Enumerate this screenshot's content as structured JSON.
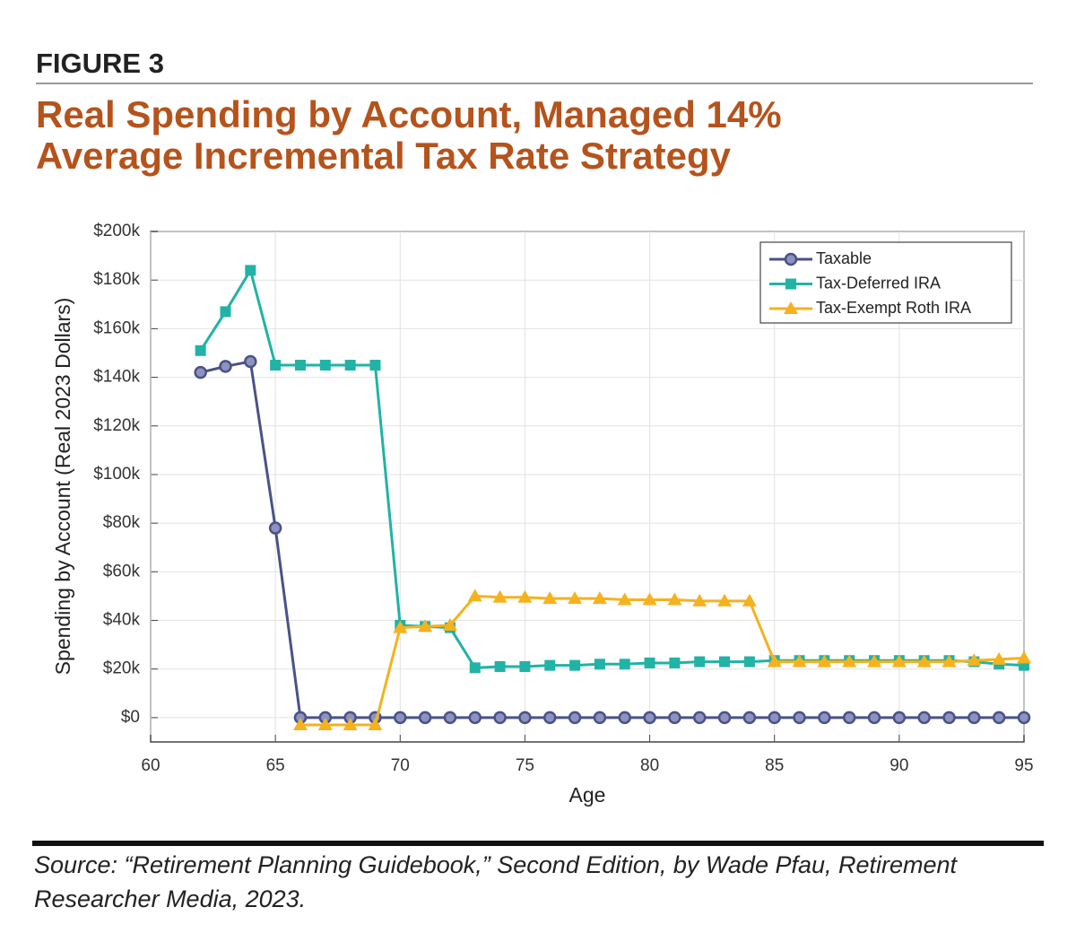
{
  "chart_data": {
    "type": "line",
    "figure_label": "FIGURE 3",
    "title": [
      "Real Spending by Account, Managed 14%",
      "Average Incremental Tax Rate Strategy"
    ],
    "source": [
      "Source: “Retirement Planning Guidebook,” Second Edition, by Wade Pfau, Retirement",
      "Researcher Media, 2023."
    ],
    "xlabel": "Age",
    "ylabel": "Spending by Account (Real 2023 Dollars)",
    "x": [
      62,
      63,
      64,
      65,
      66,
      67,
      68,
      69,
      70,
      71,
      72,
      73,
      74,
      75,
      76,
      77,
      78,
      79,
      80,
      81,
      82,
      83,
      84,
      85,
      86,
      87,
      88,
      89,
      90,
      91,
      92,
      93,
      94,
      95
    ],
    "xlim": [
      60,
      95
    ],
    "xticks": [
      60,
      65,
      70,
      75,
      80,
      85,
      90,
      95
    ],
    "ylim": [
      -10000,
      200000
    ],
    "yticks": [
      {
        "value": 0,
        "label": "$0"
      },
      {
        "value": 20000,
        "label": "$20k"
      },
      {
        "value": 40000,
        "label": "$40k"
      },
      {
        "value": 60000,
        "label": "$60k"
      },
      {
        "value": 80000,
        "label": "$80k"
      },
      {
        "value": 100000,
        "label": "$100k"
      },
      {
        "value": 120000,
        "label": "$120k"
      },
      {
        "value": 140000,
        "label": "$140k"
      },
      {
        "value": 160000,
        "label": "$160k"
      },
      {
        "value": 180000,
        "label": "$180k"
      },
      {
        "value": 200000,
        "label": "$200k"
      }
    ],
    "grid": true,
    "legend": "upper right",
    "series": [
      {
        "name": "Taxable",
        "color": "#4a5286",
        "marker": "circle",
        "values": [
          142000,
          144500,
          146500,
          78000,
          0,
          0,
          0,
          0,
          0,
          0,
          0,
          0,
          0,
          0,
          0,
          0,
          0,
          0,
          0,
          0,
          0,
          0,
          0,
          0,
          0,
          0,
          0,
          0,
          0,
          0,
          0,
          0,
          0,
          0
        ]
      },
      {
        "name": "Tax-Deferred IRA",
        "color": "#20b3a6",
        "marker": "square",
        "values": [
          151000,
          167000,
          184000,
          145000,
          145000,
          145000,
          145000,
          145000,
          38000,
          37500,
          37000,
          20500,
          21000,
          21000,
          21500,
          21500,
          22000,
          22000,
          22500,
          22500,
          23000,
          23000,
          23000,
          23500,
          23500,
          23500,
          23500,
          23500,
          23500,
          23500,
          23500,
          23000,
          22000,
          21500
        ]
      },
      {
        "name": "Tax-Exempt Roth IRA",
        "color": "#f5b21e",
        "marker": "triangle",
        "values": [
          null,
          null,
          null,
          null,
          -3000,
          -3000,
          -3000,
          -3000,
          37000,
          37500,
          38000,
          50000,
          49500,
          49500,
          49000,
          49000,
          49000,
          48500,
          48500,
          48500,
          48000,
          48000,
          48000,
          23000,
          23000,
          23000,
          23000,
          23000,
          23000,
          23000,
          23000,
          23500,
          24000,
          24500
        ]
      }
    ]
  }
}
